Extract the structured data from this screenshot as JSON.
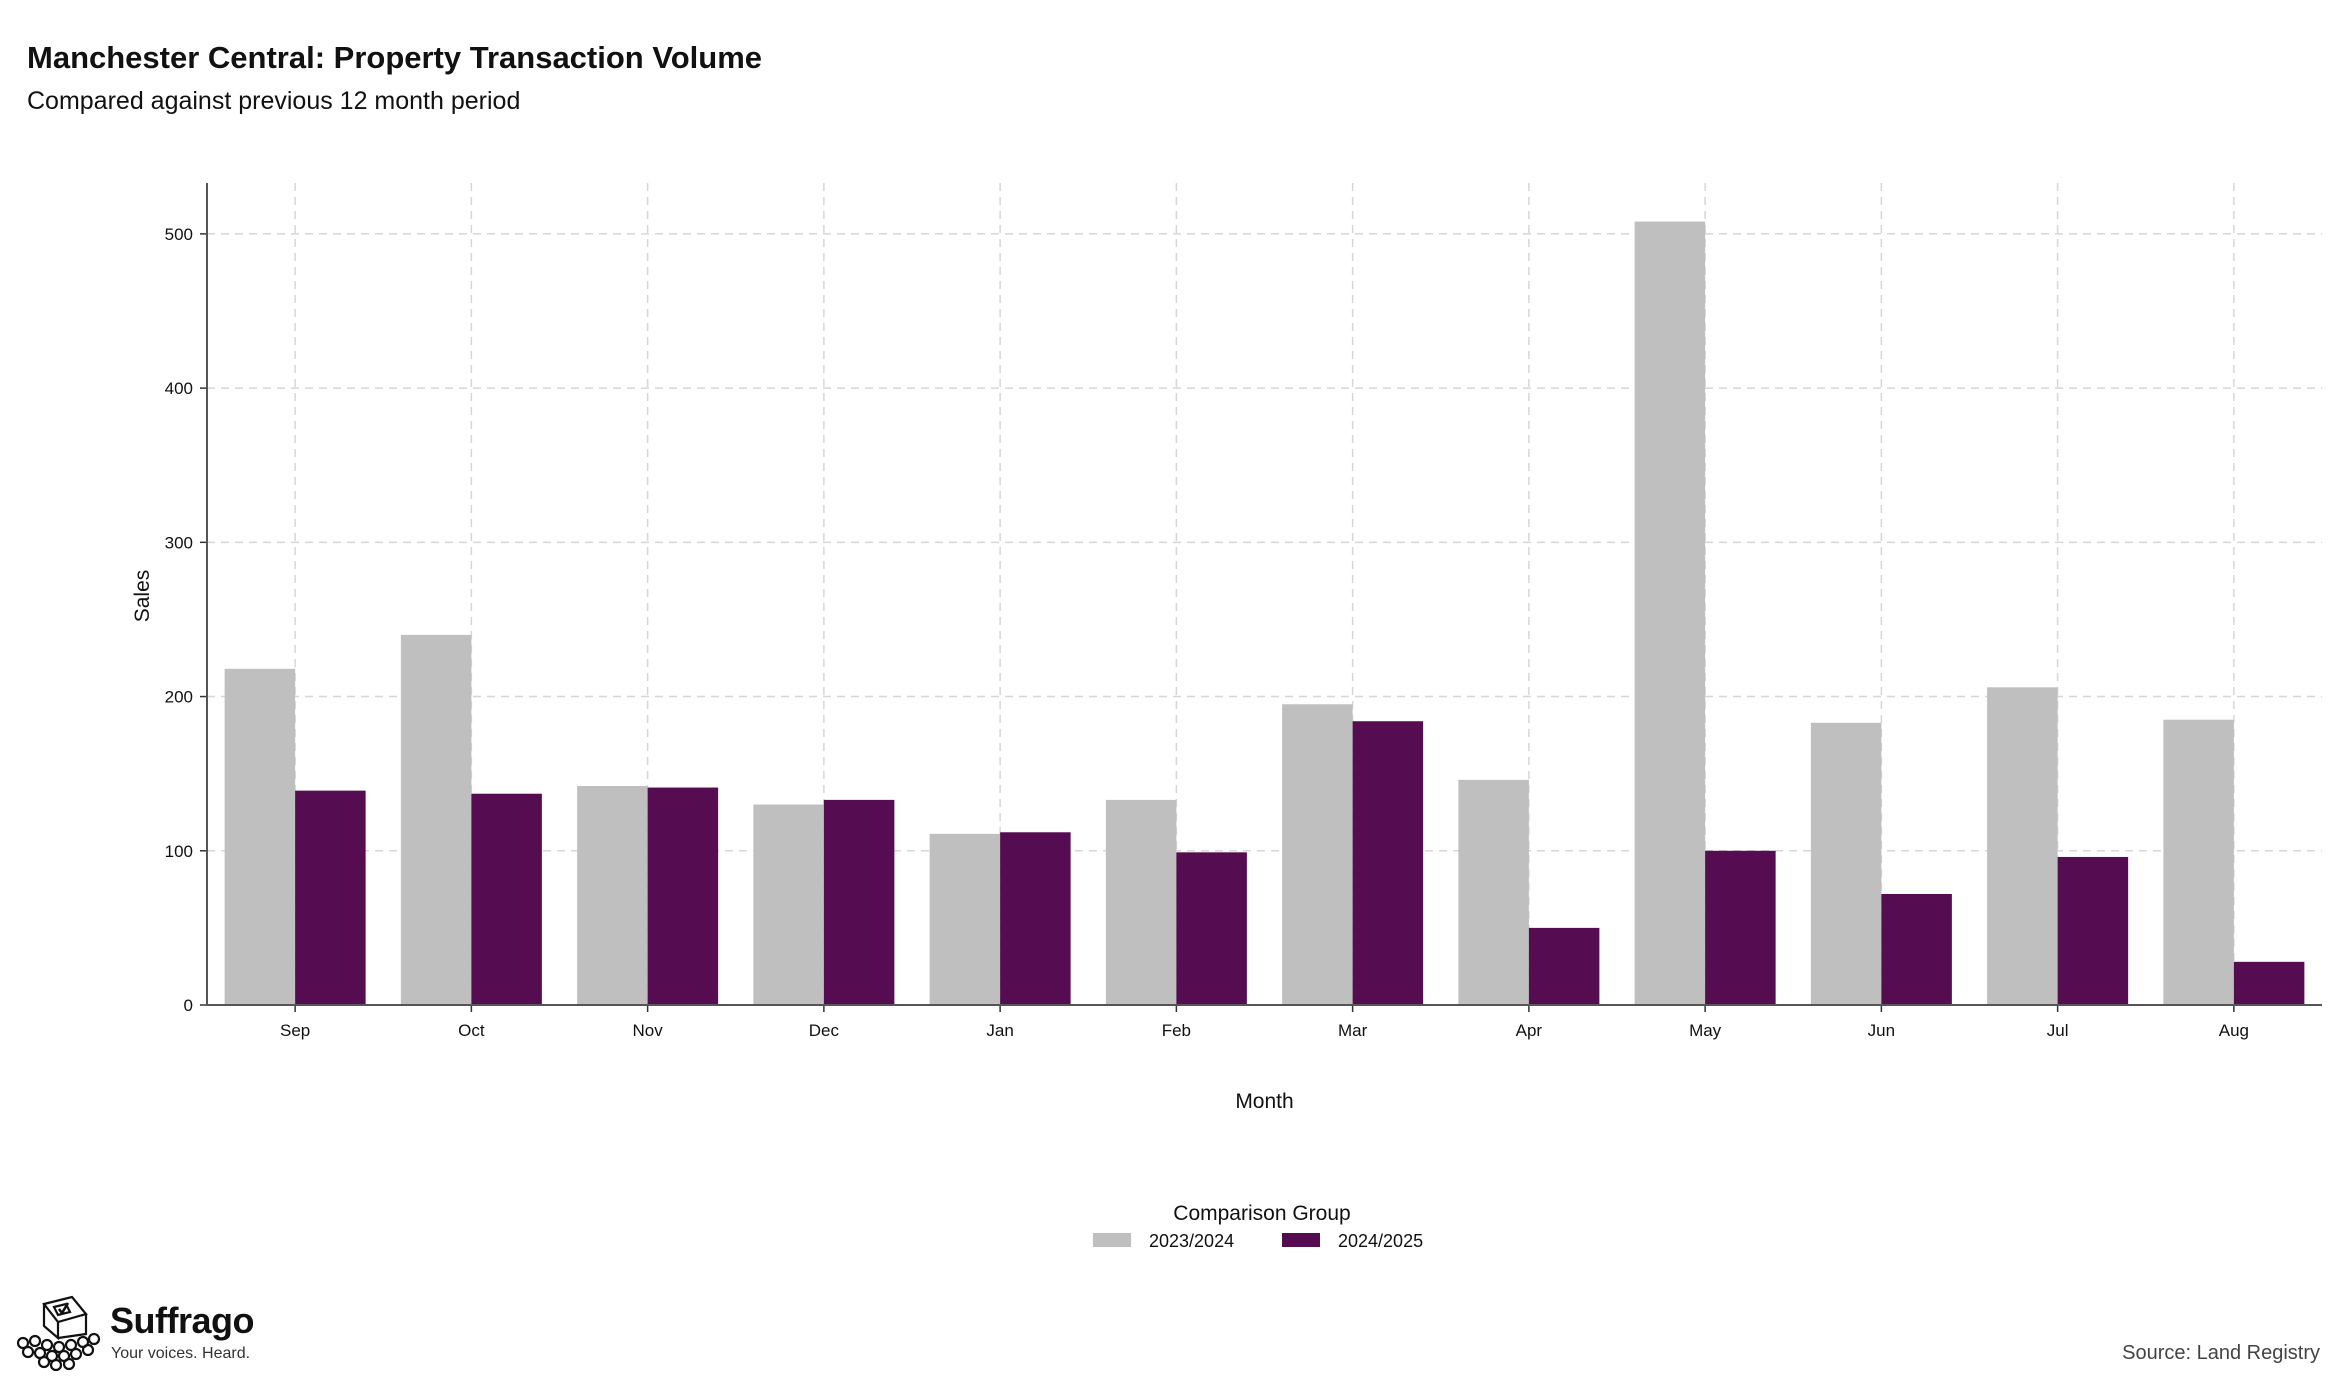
{
  "title": "Manchester Central: Property Transaction Volume",
  "subtitle": "Compared against previous 12 month period",
  "source": "Source: Land Registry",
  "brand": {
    "name": "Suffrago",
    "tagline": "Your voices. Heard.",
    "icon": "ballot-box-crowd-icon"
  },
  "chart_data": {
    "type": "bar",
    "categories": [
      "Sep",
      "Oct",
      "Nov",
      "Dec",
      "Jan",
      "Feb",
      "Mar",
      "Apr",
      "May",
      "Jun",
      "Jul",
      "Aug"
    ],
    "series": [
      {
        "name": "2023/2024",
        "color": "#bfbfbf",
        "values": [
          218,
          240,
          142,
          130,
          111,
          133,
          195,
          146,
          508,
          183,
          206,
          185
        ]
      },
      {
        "name": "2024/2025",
        "color": "#560c51",
        "values": [
          139,
          137,
          141,
          133,
          112,
          99,
          184,
          50,
          100,
          72,
          96,
          28
        ]
      }
    ],
    "xlabel": "Month",
    "ylabel": "Sales",
    "ylim": [
      0,
      533
    ],
    "yticks": [
      0,
      100,
      200,
      300,
      400,
      500
    ],
    "grid": true,
    "legend": {
      "title": "Comparison Group",
      "position": "bottom"
    }
  }
}
